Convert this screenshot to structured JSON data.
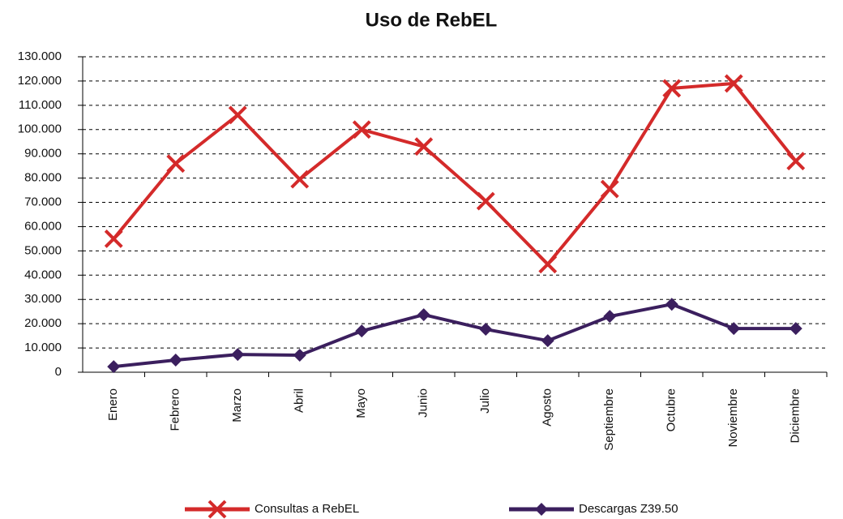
{
  "chart_data": {
    "type": "line",
    "title": "Uso de RebEL",
    "categories": [
      "Enero",
      "Febrero",
      "Marzo",
      "Abril",
      "Mayo",
      "Junio",
      "Julio",
      "Agosto",
      "Septiembre",
      "Octubre",
      "Noviembre",
      "Diciembre"
    ],
    "series": [
      {
        "name": "Consultas a RebEL",
        "color": "#d42a2a",
        "marker": "x",
        "values": [
          55000,
          86000,
          106000,
          79500,
          100000,
          93000,
          70500,
          44500,
          75500,
          117000,
          119000,
          87000
        ]
      },
      {
        "name": "Descargas Z39.50",
        "color": "#3b1f5e",
        "marker": "diamond",
        "values": [
          2300,
          5000,
          7300,
          7000,
          17000,
          23700,
          17700,
          13000,
          23000,
          28000,
          18000,
          18000
        ]
      }
    ],
    "ylim": [
      0,
      130000
    ],
    "yticks": [
      0,
      {
        "value": 10000,
        "label": "10.000"
      },
      {
        "value": 20000,
        "label": "20.000"
      },
      {
        "value": 30000,
        "label": "30.000"
      },
      {
        "value": 40000,
        "label": "40.000"
      },
      {
        "value": 50000,
        "label": "50.000"
      },
      {
        "value": 60000,
        "label": "60.000"
      },
      {
        "value": 70000,
        "label": "70.000"
      },
      {
        "value": 80000,
        "label": "80.000"
      },
      {
        "value": 90000,
        "label": "90.000"
      },
      {
        "value": 100000,
        "label": "100.000"
      },
      {
        "value": 110000,
        "label": "110.000"
      },
      {
        "value": 120000,
        "label": "120.000"
      },
      {
        "value": 130000,
        "label": "130.000"
      }
    ],
    "grid": true,
    "legend": "bottom"
  }
}
